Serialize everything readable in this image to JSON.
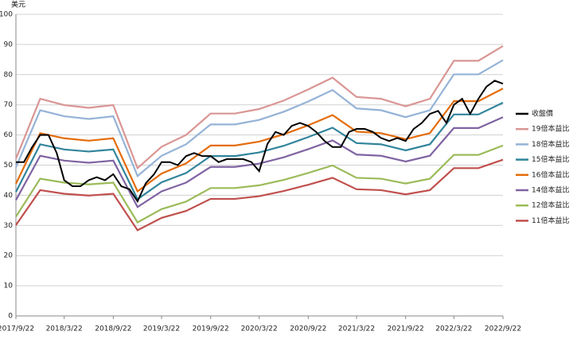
{
  "chart_data": {
    "type": "line",
    "y_label": "美元",
    "xlim": [
      "2017/9/22",
      "2022/9/22"
    ],
    "xticks": [
      "2017/9/22",
      "2018/3/22",
      "2018/9/22",
      "2019/3/22",
      "2019/9/22",
      "2020/3/22",
      "2020/9/22",
      "2021/3/22",
      "2021/9/22",
      "2022/3/22",
      "2022/9/22"
    ],
    "ylim": [
      0,
      100
    ],
    "yticks": [
      0,
      10,
      20,
      30,
      40,
      50,
      60,
      70,
      80,
      90,
      100
    ],
    "grid": true,
    "legend": "right",
    "series": [
      {
        "name": "收盤價",
        "color": "#000000",
        "x": [
          "2017/9/22",
          "2017/10/22",
          "2017/11/22",
          "2017/12/22",
          "2018/1/22",
          "2018/2/22",
          "2018/3/22",
          "2018/4/22",
          "2018/5/22",
          "2018/6/22",
          "2018/7/22",
          "2018/8/22",
          "2018/9/22",
          "2018/10/22",
          "2018/11/22",
          "2018/12/22",
          "2019/1/22",
          "2019/2/22",
          "2019/3/22",
          "2019/4/22",
          "2019/5/22",
          "2019/6/22",
          "2019/7/22",
          "2019/8/22",
          "2019/9/22",
          "2019/10/22",
          "2019/11/22",
          "2019/12/22",
          "2020/1/22",
          "2020/2/22",
          "2020/3/22",
          "2020/4/22",
          "2020/5/22",
          "2020/6/22",
          "2020/7/22",
          "2020/8/22",
          "2020/9/22",
          "2020/10/22",
          "2020/11/22",
          "2020/12/22",
          "2021/1/22",
          "2021/2/22",
          "2021/3/22",
          "2021/4/22",
          "2021/5/22",
          "2021/6/22",
          "2021/7/22",
          "2021/8/22",
          "2021/9/22",
          "2021/10/22",
          "2021/11/22",
          "2021/12/22",
          "2022/1/22",
          "2022/2/22",
          "2022/3/22",
          "2022/4/22",
          "2022/5/22",
          "2022/6/22",
          "2022/7/22",
          "2022/8/22",
          "2022/9/22"
        ],
        "values": [
          51,
          51,
          56,
          60,
          60,
          54,
          45,
          43,
          43,
          45,
          46,
          45,
          47,
          43,
          42,
          38,
          44,
          47,
          51,
          51,
          50,
          53,
          54,
          53,
          53,
          51,
          52,
          52,
          52,
          51,
          48,
          57,
          61,
          60,
          63,
          64,
          63,
          61,
          58,
          56,
          56,
          61,
          62,
          62,
          61,
          59,
          58,
          59,
          58,
          62,
          64,
          67,
          68,
          64,
          70,
          72,
          67,
          72,
          76,
          78,
          77
        ]
      },
      {
        "name": "19倍本益比",
        "color": "#d99694",
        "x": [
          "2017/9/22",
          "2017/12/22",
          "2018/3/22",
          "2018/6/22",
          "2018/9/22",
          "2018/12/22",
          "2019/3/22",
          "2019/6/22",
          "2019/9/22",
          "2019/12/22",
          "2020/3/22",
          "2020/6/22",
          "2020/9/22",
          "2020/12/22",
          "2021/3/22",
          "2021/6/22",
          "2021/9/22",
          "2021/12/22",
          "2022/3/22",
          "2022/6/22",
          "2022/9/22"
        ],
        "values": [
          52.1,
          72.0,
          69.9,
          69.0,
          69.9,
          49.0,
          56.1,
          60.0,
          67.1,
          67.1,
          68.6,
          71.4,
          75.1,
          79.0,
          72.6,
          72.0,
          69.5,
          72.0,
          84.6,
          84.6,
          89.5
        ]
      },
      {
        "name": "18倍本益比",
        "color": "#95b3d7",
        "x": [
          "2017/9/22",
          "2017/12/22",
          "2018/3/22",
          "2018/6/22",
          "2018/9/22",
          "2018/12/22",
          "2019/3/22",
          "2019/6/22",
          "2019/9/22",
          "2019/12/22",
          "2020/3/22",
          "2020/6/22",
          "2020/9/22",
          "2020/12/22",
          "2021/3/22",
          "2021/6/22",
          "2021/9/22",
          "2021/12/22",
          "2022/3/22",
          "2022/6/22",
          "2022/9/22"
        ],
        "values": [
          49.3,
          68.2,
          66.2,
          65.3,
          66.2,
          46.4,
          53.1,
          56.9,
          63.5,
          63.5,
          65.0,
          67.7,
          71.1,
          74.9,
          68.8,
          68.2,
          65.9,
          68.2,
          80.1,
          80.1,
          84.8
        ]
      },
      {
        "name": "15倍本益比",
        "color": "#31859c",
        "x": [
          "2017/9/22",
          "2017/12/22",
          "2018/3/22",
          "2018/6/22",
          "2018/9/22",
          "2018/12/22",
          "2019/3/22",
          "2019/6/22",
          "2019/9/22",
          "2019/12/22",
          "2020/3/22",
          "2020/6/22",
          "2020/9/22",
          "2020/12/22",
          "2021/3/22",
          "2021/6/22",
          "2021/9/22",
          "2021/12/22",
          "2022/3/22",
          "2022/6/22",
          "2022/9/22"
        ],
        "values": [
          41.1,
          56.9,
          55.2,
          54.5,
          55.2,
          38.7,
          44.3,
          47.4,
          53.0,
          53.0,
          54.2,
          56.4,
          59.3,
          62.4,
          57.3,
          56.9,
          54.9,
          56.9,
          66.8,
          66.8,
          70.7
        ]
      },
      {
        "name": "16倍本益比",
        "color": "#e46c0a",
        "x": [
          "2017/9/22",
          "2017/12/22",
          "2018/3/22",
          "2018/6/22",
          "2018/9/22",
          "2018/12/22",
          "2019/3/22",
          "2019/6/22",
          "2019/9/22",
          "2019/12/22",
          "2020/3/22",
          "2020/6/22",
          "2020/9/22",
          "2020/12/22",
          "2021/3/22",
          "2021/6/22",
          "2021/9/22",
          "2021/12/22",
          "2022/3/22",
          "2022/6/22",
          "2022/9/22"
        ],
        "values": [
          43.8,
          60.6,
          58.9,
          58.1,
          58.9,
          41.3,
          47.2,
          50.6,
          56.5,
          56.5,
          57.8,
          60.2,
          63.2,
          66.6,
          61.1,
          60.6,
          58.6,
          60.6,
          71.2,
          71.2,
          75.4
        ]
      },
      {
        "name": "14倍本益比",
        "color": "#8064a2",
        "x": [
          "2017/9/22",
          "2017/12/22",
          "2018/3/22",
          "2018/6/22",
          "2018/9/22",
          "2018/12/22",
          "2019/3/22",
          "2019/6/22",
          "2019/9/22",
          "2019/12/22",
          "2020/3/22",
          "2020/6/22",
          "2020/9/22",
          "2020/12/22",
          "2021/3/22",
          "2021/6/22",
          "2021/9/22",
          "2021/12/22",
          "2022/3/22",
          "2022/6/22",
          "2022/9/22"
        ],
        "values": [
          38.4,
          53.1,
          51.5,
          50.8,
          51.5,
          36.1,
          41.3,
          44.2,
          49.4,
          49.4,
          50.5,
          52.6,
          55.3,
          58.2,
          53.5,
          53.1,
          51.2,
          53.1,
          62.3,
          62.3,
          65.9
        ]
      },
      {
        "name": "12倍本益比",
        "color": "#9bbb59",
        "x": [
          "2017/9/22",
          "2017/12/22",
          "2018/3/22",
          "2018/6/22",
          "2018/9/22",
          "2018/12/22",
          "2019/3/22",
          "2019/6/22",
          "2019/9/22",
          "2019/12/22",
          "2020/3/22",
          "2020/6/22",
          "2020/9/22",
          "2020/12/22",
          "2021/3/22",
          "2021/6/22",
          "2021/9/22",
          "2021/12/22",
          "2022/3/22",
          "2022/6/22",
          "2022/9/22"
        ],
        "values": [
          32.9,
          45.5,
          44.2,
          43.6,
          44.2,
          31.0,
          35.4,
          37.9,
          42.4,
          42.4,
          43.3,
          45.1,
          47.4,
          49.9,
          45.8,
          45.5,
          43.9,
          45.5,
          53.4,
          53.4,
          56.5
        ]
      },
      {
        "name": "11倍本益比",
        "color": "#c0504d",
        "x": [
          "2017/9/22",
          "2017/12/22",
          "2018/3/22",
          "2018/6/22",
          "2018/9/22",
          "2018/12/22",
          "2019/3/22",
          "2019/6/22",
          "2019/9/22",
          "2019/12/22",
          "2020/3/22",
          "2020/6/22",
          "2020/9/22",
          "2020/12/22",
          "2021/3/22",
          "2021/6/22",
          "2021/9/22",
          "2021/12/22",
          "2022/3/22",
          "2022/6/22",
          "2022/9/22"
        ],
        "values": [
          30.1,
          41.7,
          40.5,
          39.9,
          40.5,
          28.4,
          32.5,
          34.8,
          38.8,
          38.8,
          39.7,
          41.4,
          43.5,
          45.8,
          42.0,
          41.7,
          40.3,
          41.7,
          49.0,
          49.0,
          51.8
        ]
      }
    ]
  }
}
